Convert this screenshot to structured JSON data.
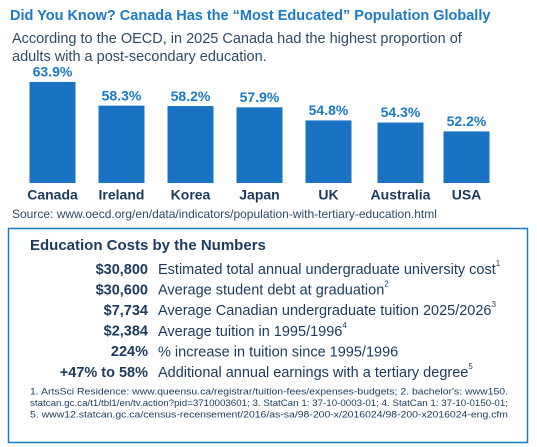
{
  "chart_data": {
    "type": "bar",
    "title": "Did You Know? Canada Has the “Most Educated” Population Globally",
    "subtitle": [
      "According to the OECD, in 2025 Canada had the highest proportion of",
      "adults with a post-secondary education."
    ],
    "categories": [
      "Canada",
      "Ireland",
      "Korea",
      "Japan",
      "UK",
      "Australia",
      "USA"
    ],
    "values": [
      63.9,
      58.3,
      58.2,
      57.9,
      54.8,
      54.3,
      52.2
    ],
    "value_labels": [
      "63.9%",
      "58.3%",
      "58.2%",
      "57.9%",
      "54.8%",
      "54.3%",
      "52.2%"
    ],
    "color": "#1a73c2",
    "ylim": [
      40,
      65
    ],
    "source": "Source: www.oecd.org/en/data/indicators/population-with-tertiary-education.html"
  },
  "costs": {
    "title": "Education Costs by the Numbers",
    "rows": [
      {
        "amount": "$30,800",
        "text": "Estimated total annual undergraduate university cost",
        "sup": "1"
      },
      {
        "amount": "$30,600",
        "text": "Average student debt at graduation",
        "sup": "2"
      },
      {
        "amount": "$7,734",
        "text": "Average Canadian undergraduate tuition 2025/2026",
        "sup": "3"
      },
      {
        "amount": "$2,384",
        "text": "Average tuition in 1995/1996",
        "sup": "4"
      },
      {
        "amount": "224%",
        "text": "% increase in tuition since 1995/1996"
      },
      {
        "amount": "+47% to 58%",
        "text": "Additional annual earnings with a tertiary degree",
        "sup": "5"
      }
    ],
    "footnote": [
      "1. ArtsSci Residence: www.queensu.ca/registrar/tuition-fees/expenses-budgets; 2. bachelor's: www150.",
      "statcan.gc.ca/t1/tbl1/en/tv.action?pid=3710003601; 3. StatCan 1: 37-10-0003-01; 4. StatCan 1: 37-10-0150-01;",
      "5. www12.statcan.gc.ca/census-recensement/2016/as-sa/98-200-x/2016024/98-200-x2016024-eng.cfm"
    ]
  }
}
